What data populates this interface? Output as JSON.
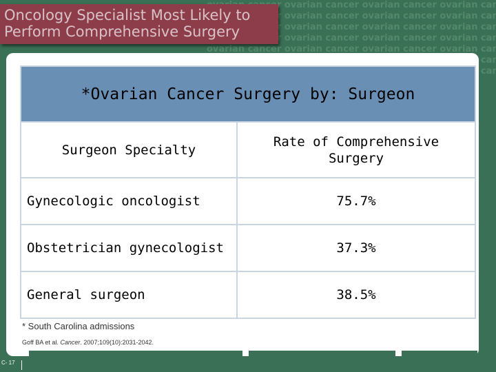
{
  "background": {
    "watermark_text": "ovarian cancer ovarian cancer ovarian cancer ovarian cancer ovarian cancer ovarian cancer",
    "color": "#3a7055"
  },
  "title": {
    "line1": "Oncology Specialist Most Likely to",
    "line2": "Perform Comprehensive Surgery",
    "color": "#8c3d49"
  },
  "table": {
    "heading": "*Ovarian Cancer Surgery by: Surgeon",
    "col1_header": "Surgeon Specialty",
    "col2_header_line1": "Rate of Comprehensive",
    "col2_header_line2": "Surgery",
    "rows": [
      {
        "specialty": "Gynecologic oncologist",
        "rate": "75.7%"
      },
      {
        "specialty": "Obstetrician gynecologist",
        "rate": "37.3%"
      },
      {
        "specialty": "General surgeon",
        "rate": "38.5%"
      }
    ],
    "header_color": "#6a8fb5"
  },
  "footnote": "* South Carolina admissions",
  "citation": {
    "prefix": "Goff BA et al.",
    "journal": "Cancer",
    "suffix": "2007;109(10):2031-2042."
  },
  "slide_number": "C- 17"
}
